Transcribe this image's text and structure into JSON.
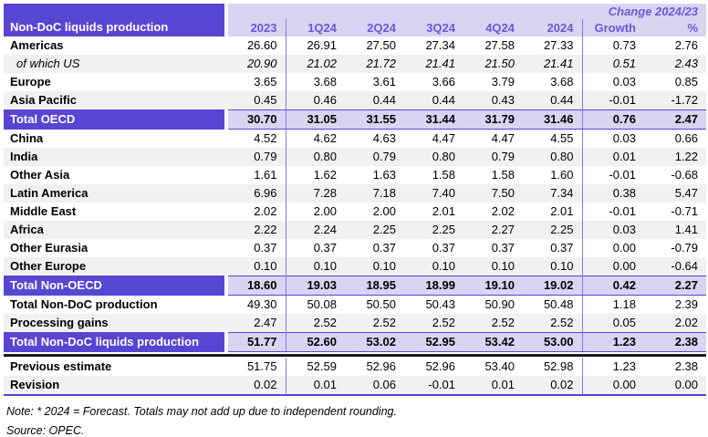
{
  "table": {
    "title": "Non-DoC liquids production",
    "change_header": "Change 2024/23",
    "columns": [
      "2023",
      "1Q24",
      "2Q24",
      "3Q24",
      "4Q24",
      "2024",
      "Growth",
      "%"
    ],
    "rows": [
      {
        "label": "Americas",
        "type": "region",
        "values": [
          "26.60",
          "26.91",
          "27.50",
          "27.34",
          "27.58",
          "27.33",
          "0.73",
          "2.76"
        ]
      },
      {
        "label": "of which US",
        "type": "italic",
        "values": [
          "20.90",
          "21.02",
          "21.72",
          "21.41",
          "21.50",
          "21.41",
          "0.51",
          "2.43"
        ]
      },
      {
        "label": "Europe",
        "type": "region",
        "values": [
          "3.65",
          "3.68",
          "3.61",
          "3.66",
          "3.79",
          "3.68",
          "0.03",
          "0.85"
        ]
      },
      {
        "label": "Asia Pacific",
        "type": "region",
        "values": [
          "0.45",
          "0.46",
          "0.44",
          "0.44",
          "0.43",
          "0.44",
          "-0.01",
          "-1.72"
        ]
      },
      {
        "label": "Total OECD",
        "type": "total",
        "values": [
          "30.70",
          "31.05",
          "31.55",
          "31.44",
          "31.79",
          "31.46",
          "0.76",
          "2.47"
        ]
      },
      {
        "label": "China",
        "type": "region",
        "values": [
          "4.52",
          "4.62",
          "4.63",
          "4.47",
          "4.47",
          "4.55",
          "0.03",
          "0.66"
        ]
      },
      {
        "label": "India",
        "type": "region",
        "values": [
          "0.79",
          "0.80",
          "0.79",
          "0.80",
          "0.79",
          "0.80",
          "0.01",
          "1.22"
        ]
      },
      {
        "label": "Other Asia",
        "type": "region",
        "values": [
          "1.61",
          "1.62",
          "1.63",
          "1.58",
          "1.58",
          "1.60",
          "-0.01",
          "-0.68"
        ]
      },
      {
        "label": "Latin America",
        "type": "region",
        "values": [
          "6.96",
          "7.28",
          "7.18",
          "7.40",
          "7.50",
          "7.34",
          "0.38",
          "5.47"
        ]
      },
      {
        "label": "Middle East",
        "type": "region",
        "values": [
          "2.02",
          "2.00",
          "2.00",
          "2.01",
          "2.02",
          "2.01",
          "-0.01",
          "-0.71"
        ]
      },
      {
        "label": "Africa",
        "type": "region",
        "values": [
          "2.22",
          "2.24",
          "2.25",
          "2.25",
          "2.27",
          "2.25",
          "0.03",
          "1.41"
        ]
      },
      {
        "label": "Other Eurasia",
        "type": "region",
        "values": [
          "0.37",
          "0.37",
          "0.37",
          "0.37",
          "0.37",
          "0.37",
          "0.00",
          "-0.79"
        ]
      },
      {
        "label": "Other Europe",
        "type": "region",
        "values": [
          "0.10",
          "0.10",
          "0.10",
          "0.10",
          "0.10",
          "0.10",
          "0.00",
          "-0.64"
        ]
      },
      {
        "label": "Total Non-OECD",
        "type": "total",
        "values": [
          "18.60",
          "19.03",
          "18.95",
          "18.99",
          "19.10",
          "19.02",
          "0.42",
          "2.27"
        ]
      },
      {
        "label": "Total Non-DoC production",
        "type": "region",
        "values": [
          "49.30",
          "50.08",
          "50.50",
          "50.43",
          "50.90",
          "50.48",
          "1.18",
          "2.39"
        ]
      },
      {
        "label": "Processing gains",
        "type": "region",
        "values": [
          "2.47",
          "2.52",
          "2.52",
          "2.52",
          "2.52",
          "2.52",
          "0.05",
          "2.02"
        ]
      },
      {
        "label": "Total Non-DoC liquids production",
        "type": "grand",
        "values": [
          "51.77",
          "52.60",
          "53.02",
          "52.95",
          "53.42",
          "53.00",
          "1.23",
          "2.38"
        ]
      },
      {
        "label": "Previous estimate",
        "type": "region",
        "values": [
          "51.75",
          "52.59",
          "52.96",
          "52.96",
          "53.40",
          "52.98",
          "1.23",
          "2.38"
        ]
      },
      {
        "label": "Revision",
        "type": "region",
        "values": [
          "0.02",
          "0.01",
          "0.06",
          "-0.01",
          "0.01",
          "0.02",
          "0.00",
          "0.00"
        ]
      }
    ]
  },
  "footnotes": {
    "note": "Note: * 2024 = Forecast. Totals may not add up due to independent rounding.",
    "source": "Source: OPEC."
  },
  "colors": {
    "purple": "#5845D1",
    "lavender": "#D9D4F2",
    "stripe": "#F1F1F1",
    "header_text": "#6A58D8",
    "divider": "#8477E2"
  }
}
